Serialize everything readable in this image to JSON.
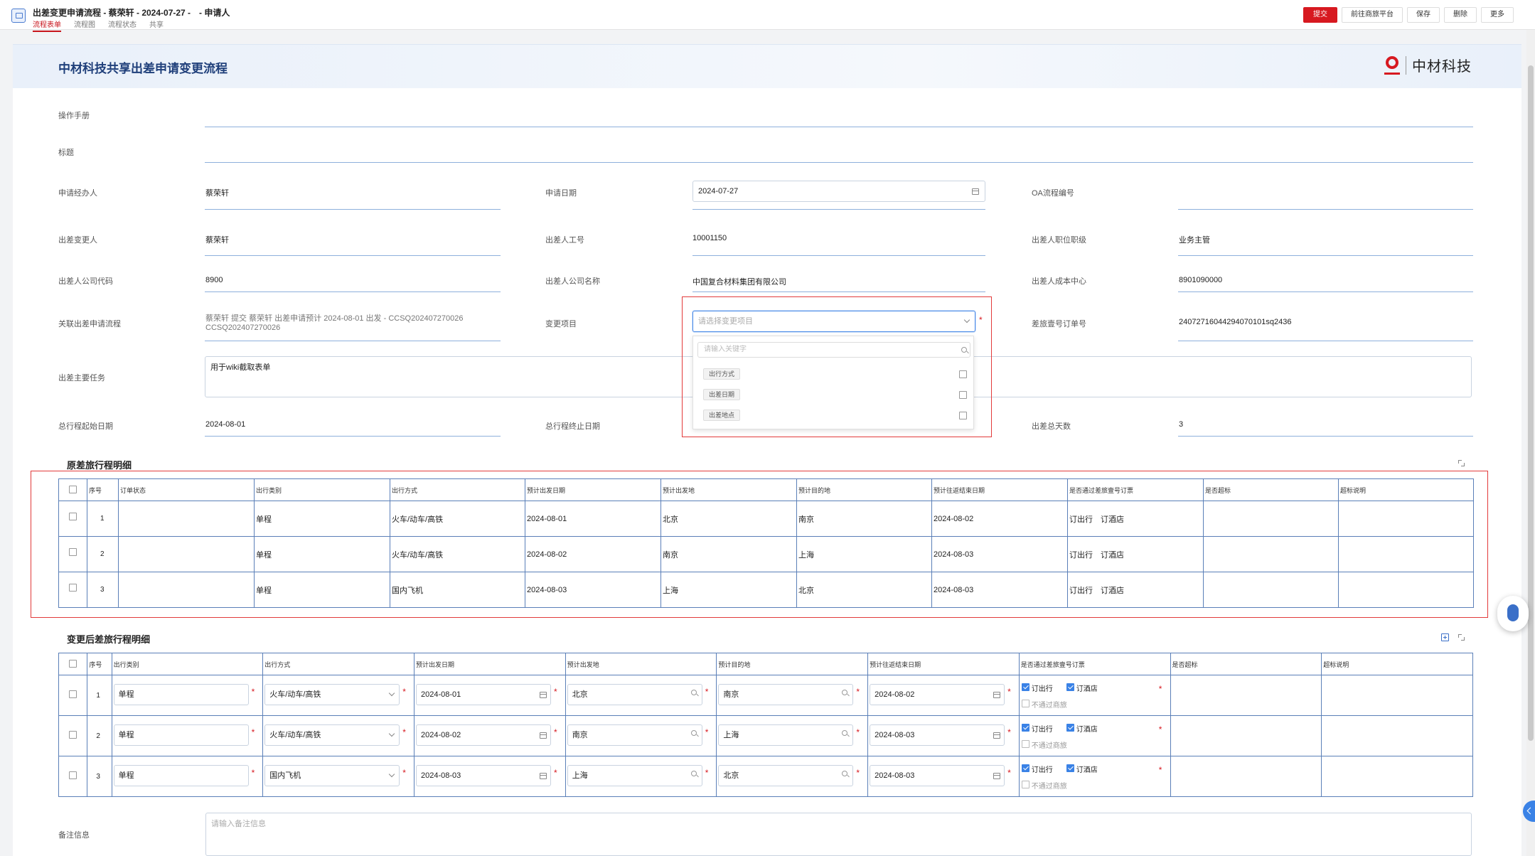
{
  "window": {
    "title": "出差变更申请流程 - 蔡荣轩 - 2024-07-27 -　- 申请人",
    "tabs": [
      "流程表单",
      "流程图",
      "流程状态",
      "共享"
    ],
    "actions": {
      "submit": "提交",
      "travel_platform": "前往商旅平台",
      "save": "保存",
      "delete": "删除",
      "more": "更多"
    }
  },
  "form": {
    "title": "中材科技共享出差申请变更流程",
    "logo_text": "中材科技"
  },
  "fields": {
    "manual": {
      "label": "操作手册"
    },
    "title_field": {
      "label": "标题"
    },
    "applicant": {
      "label": "申请经办人",
      "value": "蔡荣轩"
    },
    "apply_date": {
      "label": "申请日期",
      "value": "2024-07-27"
    },
    "oa_number": {
      "label": "OA流程编号"
    },
    "traveler": {
      "label": "出差变更人",
      "value": "蔡荣轩"
    },
    "employee_no": {
      "label": "出差人工号",
      "value": "10001150"
    },
    "position": {
      "label": "出差人职位职级",
      "value": "业务主管"
    },
    "company_code": {
      "label": "出差人公司代码",
      "value": "8900"
    },
    "company_name": {
      "label": "出差人公司名称",
      "value": "中国复合材料集团有限公司"
    },
    "cost_center": {
      "label": "出差人成本中心",
      "value": "8901090000"
    },
    "related_flow": {
      "label": "关联出差申请流程",
      "value_line1": "蔡荣轩 提交 蔡荣轩 出差申请预计 2024-08-01 出发 - CCSQ202407270026",
      "value_line2": "CCSQ202407270026"
    },
    "change_item": {
      "label": "变更项目",
      "placeholder": "请选择变更项目"
    },
    "order_no": {
      "label": "差旅壹号订单号",
      "value": "24072716044294070101sq2436"
    },
    "main_task": {
      "label": "出差主要任务",
      "value": "用于wiki截取表单"
    },
    "start_date": {
      "label": "总行程起始日期",
      "value": "2024-08-01"
    },
    "end_date": {
      "label": "总行程终止日期"
    },
    "total_days": {
      "label": "出差总天数",
      "value": "3"
    },
    "remarks": {
      "label": "备注信息",
      "placeholder": "请输入备注信息"
    }
  },
  "dropdown": {
    "search_placeholder": "请输入关键字",
    "options": [
      "出行方式",
      "出差日期",
      "出差地点"
    ]
  },
  "original_table": {
    "title": "原差旅行程明细",
    "columns": [
      "序号",
      "订单状态",
      "出行类别",
      "出行方式",
      "预计出发日期",
      "预计出发地",
      "预计目的地",
      "预计往返结束日期",
      "是否通过差旅壹号订票",
      "是否超标",
      "超标说明"
    ],
    "rows": [
      {
        "no": "1",
        "status": "",
        "category": "单程",
        "mode": "火车/动车/高铁",
        "depart_date": "2024-08-01",
        "from": "北京",
        "to": "南京",
        "end_date": "2024-08-02",
        "booking": "订出行　订酒店",
        "over": "",
        "over_note": ""
      },
      {
        "no": "2",
        "status": "",
        "category": "单程",
        "mode": "火车/动车/高铁",
        "depart_date": "2024-08-02",
        "from": "南京",
        "to": "上海",
        "end_date": "2024-08-03",
        "booking": "订出行　订酒店",
        "over": "",
        "over_note": ""
      },
      {
        "no": "3",
        "status": "",
        "category": "单程",
        "mode": "国内飞机",
        "depart_date": "2024-08-03",
        "from": "上海",
        "to": "北京",
        "end_date": "2024-08-03",
        "booking": "订出行　订酒店",
        "over": "",
        "over_note": ""
      }
    ]
  },
  "changed_table": {
    "title": "变更后差旅行程明细",
    "columns": [
      "序号",
      "出行类别",
      "出行方式",
      "预计出发日期",
      "预计出发地",
      "预计目的地",
      "预计往返结束日期",
      "是否通过差旅壹号订票",
      "是否超标",
      "超标说明"
    ],
    "booking_labels": {
      "travel": "订出行",
      "hotel": "订酒店",
      "none": "不通过商旅"
    },
    "rows": [
      {
        "no": "1",
        "category": "单程",
        "mode": "火车/动车/高铁",
        "depart_date": "2024-08-01",
        "from": "北京",
        "to": "南京",
        "end_date": "2024-08-02"
      },
      {
        "no": "2",
        "category": "单程",
        "mode": "火车/动车/高铁",
        "depart_date": "2024-08-02",
        "from": "南京",
        "to": "上海",
        "end_date": "2024-08-03"
      },
      {
        "no": "3",
        "category": "单程",
        "mode": "国内飞机",
        "depart_date": "2024-08-03",
        "from": "上海",
        "to": "北京",
        "end_date": "2024-08-03"
      }
    ]
  },
  "colors": {
    "brand_red": "#d71920",
    "accent_blue": "#3a82e6",
    "title_blue": "#1f3f7a"
  }
}
